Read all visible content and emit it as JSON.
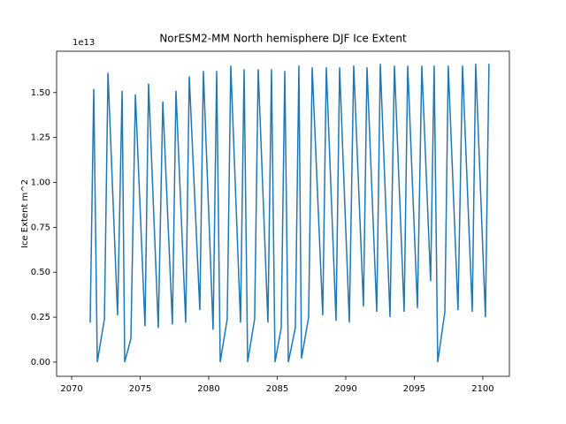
{
  "chart_data": {
    "type": "line",
    "title": "NorESM2-MM North hemisphere DJF Ice Extent",
    "ylabel": "Ice Extent m^2",
    "y_offset_label": "1e13",
    "x": [
      2071.35,
      2071.61,
      2071.87,
      2072.39,
      2072.65,
      2073.35,
      2073.68,
      2073.87,
      2074.32,
      2074.65,
      2075.35,
      2075.61,
      2076.32,
      2076.65,
      2077.35,
      2077.61,
      2078.32,
      2078.58,
      2079.35,
      2079.61,
      2080.32,
      2080.58,
      2080.84,
      2081.35,
      2081.61,
      2082.32,
      2082.58,
      2082.84,
      2083.35,
      2083.61,
      2084.32,
      2084.58,
      2084.84,
      2085.29,
      2085.55,
      2085.81,
      2086.32,
      2086.58,
      2086.77,
      2087.29,
      2087.55,
      2088.32,
      2088.58,
      2089.29,
      2089.55,
      2090.26,
      2090.58,
      2091.29,
      2091.55,
      2092.26,
      2092.52,
      2093.23,
      2093.55,
      2094.26,
      2094.52,
      2095.23,
      2095.55,
      2096.19,
      2096.45,
      2096.71,
      2097.23,
      2097.48,
      2098.19,
      2098.52,
      2099.23,
      2099.48,
      2100.19,
      2100.45
    ],
    "series": [
      {
        "color": "#1f77b4",
        "values": [
          0.22,
          1.52,
          0,
          0.24,
          1.61,
          0.26,
          1.51,
          0,
          0.13,
          1.49,
          0.2,
          1.55,
          0.19,
          1.45,
          0.21,
          1.51,
          0.22,
          1.59,
          0.29,
          1.62,
          0.18,
          1.62,
          0,
          0.24,
          1.65,
          0.22,
          1.63,
          0,
          0.24,
          1.63,
          0.22,
          1.63,
          0,
          0.19,
          1.62,
          0,
          0.19,
          1.65,
          0.02,
          0.25,
          1.64,
          0.26,
          1.64,
          0.23,
          1.64,
          0.22,
          1.65,
          0.31,
          1.64,
          0.28,
          1.66,
          0.25,
          1.65,
          0.28,
          1.65,
          0.3,
          1.65,
          0.45,
          1.65,
          0,
          0.28,
          1.65,
          0.29,
          1.65,
          0.28,
          1.66,
          0.25,
          1.66
        ]
      }
    ],
    "xlim": [
      2068.9,
      2101.94
    ],
    "ylim": [
      -0.079,
      1.73
    ],
    "xticks": [
      2070,
      2075,
      2080,
      2085,
      2090,
      2095,
      2100
    ],
    "yticks": [
      {
        "value": 0,
        "label": "0.00"
      },
      {
        "value": 0.25,
        "label": "0.25"
      },
      {
        "value": 0.5,
        "label": "0.50"
      },
      {
        "value": 0.75,
        "label": "0.75"
      },
      {
        "value": 1,
        "label": "1.00"
      },
      {
        "value": 1.25,
        "label": "1.25"
      },
      {
        "value": 1.5,
        "label": "1.50"
      }
    ]
  }
}
